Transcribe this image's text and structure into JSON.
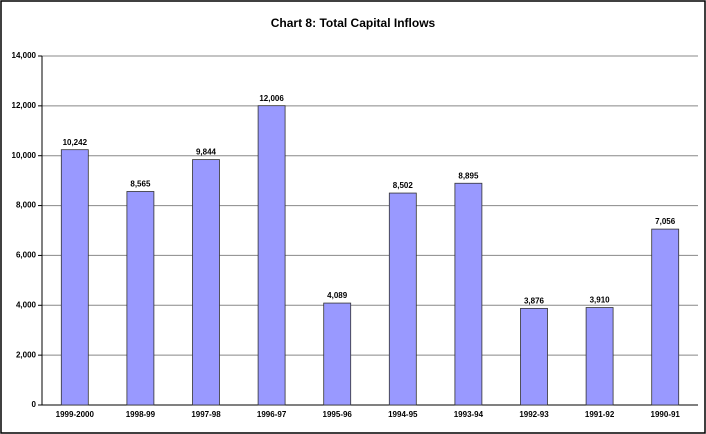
{
  "chart_data": {
    "type": "bar",
    "title": "Chart 8: Total Capital Inflows",
    "categories": [
      "1999-2000",
      "1998-99",
      "1997-98",
      "1996-97",
      "1995-96",
      "1994-95",
      "1993-94",
      "1992-93",
      "1991-92",
      "1990-91"
    ],
    "values": [
      10242,
      8565,
      9844,
      12006,
      4089,
      8502,
      8895,
      3876,
      3910,
      7056
    ],
    "value_labels": [
      "10,242",
      "8,565",
      "9,844",
      "12,006",
      "4,089",
      "8,502",
      "8,895",
      "3,876",
      "3,910",
      "7,056"
    ],
    "color": "#9999ff",
    "ylim": [
      0,
      14000
    ],
    "yticks": [
      0,
      {
        "value": 2000,
        "label": "2,000"
      },
      {
        "value": 4000,
        "label": "4,000"
      },
      {
        "value": 6000,
        "label": "6,000"
      },
      {
        "value": 8000,
        "label": "8,000"
      },
      {
        "value": 10000,
        "label": "10,000"
      },
      {
        "value": 12000,
        "label": "12,000"
      },
      {
        "value": 14000,
        "label": "14,000"
      }
    ],
    "grid": true
  }
}
